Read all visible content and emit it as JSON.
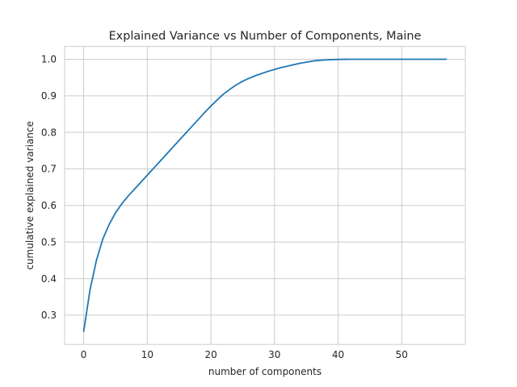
{
  "chart_data": {
    "type": "line",
    "title": "Explained Variance vs Number of Components, Maine",
    "xlabel": "number of components",
    "ylabel": "cumulative explained variance",
    "xlim": [
      -3,
      60
    ],
    "ylim": [
      0.22,
      1.035
    ],
    "xticks": [
      0,
      10,
      20,
      30,
      40,
      50
    ],
    "yticks": [
      0.3,
      0.4,
      0.5,
      0.6,
      0.7,
      0.8,
      0.9,
      1.0
    ],
    "ytick_labels": [
      "0.3",
      "0.4",
      "0.5",
      "0.6",
      "0.7",
      "0.8",
      "0.9",
      "1.0"
    ],
    "grid": true,
    "line_color": "#1f77b4",
    "series": [
      {
        "x": [
          0,
          1,
          2,
          3,
          4,
          5,
          6,
          7,
          8,
          9,
          10,
          11,
          12,
          13,
          14,
          15,
          16,
          17,
          18,
          19,
          20,
          21,
          22,
          23,
          24,
          25,
          26,
          27,
          28,
          29,
          30,
          31,
          32,
          33,
          34,
          35,
          36,
          37,
          38,
          39,
          40,
          41,
          42,
          43,
          44,
          45,
          46,
          47,
          48,
          49,
          50,
          51,
          52,
          53,
          54,
          55,
          56,
          57
        ],
        "values": [
          0.256,
          0.37,
          0.45,
          0.508,
          0.548,
          0.58,
          0.605,
          0.626,
          0.645,
          0.664,
          0.683,
          0.702,
          0.721,
          0.74,
          0.759,
          0.778,
          0.797,
          0.816,
          0.835,
          0.854,
          0.872,
          0.889,
          0.905,
          0.918,
          0.93,
          0.94,
          0.948,
          0.955,
          0.961,
          0.967,
          0.972,
          0.977,
          0.981,
          0.985,
          0.989,
          0.992,
          0.995,
          0.997,
          0.998,
          0.999,
          0.9995,
          0.9998,
          1.0,
          1.0,
          1.0,
          1.0,
          1.0,
          1.0,
          1.0,
          1.0,
          1.0,
          1.0,
          1.0,
          1.0,
          1.0,
          1.0,
          1.0,
          1.0
        ]
      }
    ]
  }
}
